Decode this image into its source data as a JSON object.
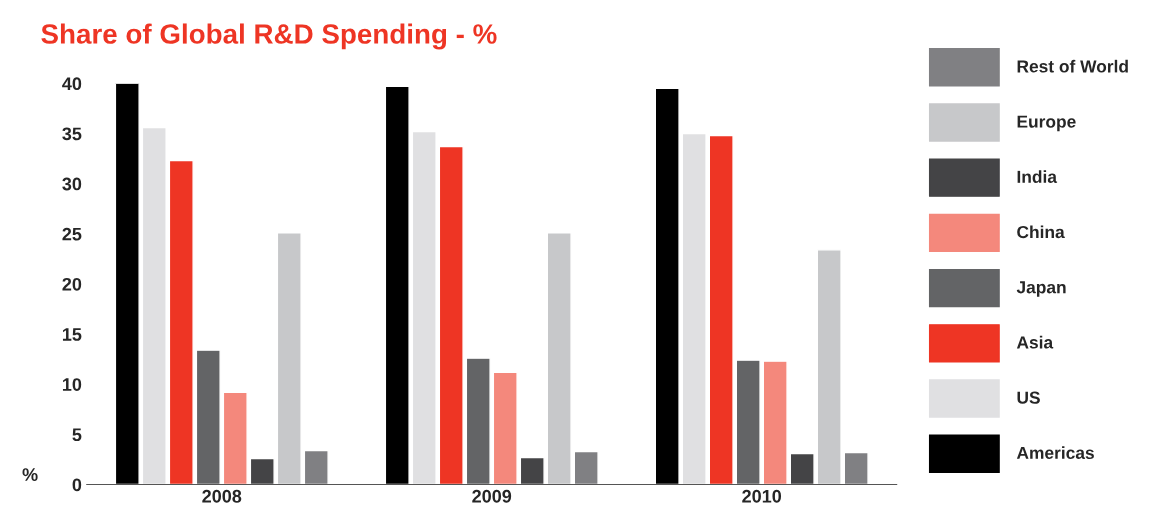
{
  "chart_data": {
    "type": "bar",
    "title": "Share of Global R&D Spending - %",
    "ylabel": "%",
    "categories": [
      "2008",
      "2009",
      "2010"
    ],
    "series": [
      {
        "name": "Americas",
        "color": "#000000",
        "values": [
          40.0,
          39.7,
          39.5
        ]
      },
      {
        "name": "US",
        "color": "#e0e0e2",
        "values": [
          35.6,
          35.2,
          35.0
        ]
      },
      {
        "name": "Asia",
        "color": "#ee3524",
        "values": [
          32.3,
          33.7,
          34.8
        ]
      },
      {
        "name": "Japan",
        "color": "#636466",
        "values": [
          13.4,
          12.6,
          12.4
        ]
      },
      {
        "name": "China",
        "color": "#f4887c",
        "values": [
          9.2,
          11.2,
          12.3
        ]
      },
      {
        "name": "India",
        "color": "#444446",
        "values": [
          2.6,
          2.7,
          3.1
        ]
      },
      {
        "name": "Europe",
        "color": "#c7c8ca",
        "values": [
          25.1,
          25.1,
          23.4
        ]
      },
      {
        "name": "Rest of World",
        "color": "#808083",
        "values": [
          3.4,
          3.3,
          3.2
        ]
      }
    ],
    "ylim": [
      0,
      40
    ],
    "yticks": [
      0,
      5,
      10,
      15,
      20,
      25,
      30,
      35,
      40
    ],
    "grid": false,
    "legend": "right"
  }
}
